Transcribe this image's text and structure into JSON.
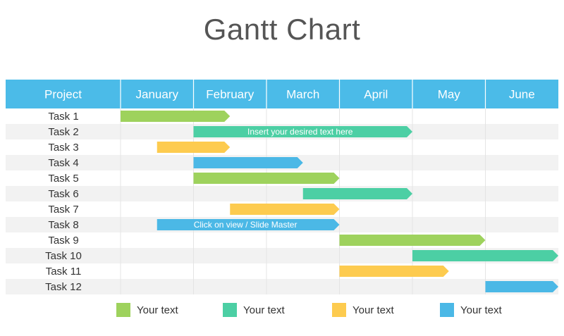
{
  "chart_data": {
    "type": "gantt",
    "title": "Gantt Chart",
    "header_label": "Project",
    "months": [
      "January",
      "February",
      "March",
      "April",
      "May",
      "June"
    ],
    "colors": {
      "green": "#9ed25d",
      "teal": "#4ccfa4",
      "yellow": "#fdcb4f",
      "blue": "#4bb8e6",
      "header": "#4bbbe8",
      "stripe": "#f2f2f2"
    },
    "tasks": [
      {
        "name": "Task 1",
        "start": 0.0,
        "end": 1.5,
        "color": "green",
        "text": ""
      },
      {
        "name": "Task 2",
        "start": 1.0,
        "end": 4.0,
        "color": "teal",
        "text": "Insert your desired text here"
      },
      {
        "name": "Task 3",
        "start": 0.5,
        "end": 1.5,
        "color": "yellow",
        "text": ""
      },
      {
        "name": "Task 4",
        "start": 1.0,
        "end": 2.5,
        "color": "blue",
        "text": ""
      },
      {
        "name": "Task 5",
        "start": 1.0,
        "end": 3.0,
        "color": "green",
        "text": ""
      },
      {
        "name": "Task 6",
        "start": 2.5,
        "end": 4.0,
        "color": "teal",
        "text": ""
      },
      {
        "name": "Task 7",
        "start": 1.5,
        "end": 3.0,
        "color": "yellow",
        "text": ""
      },
      {
        "name": "Task 8",
        "start": 0.5,
        "end": 3.0,
        "color": "blue",
        "text": "Click on view / Slide Master"
      },
      {
        "name": "Task 9",
        "start": 3.0,
        "end": 5.0,
        "color": "green",
        "text": ""
      },
      {
        "name": "Task 10",
        "start": 4.0,
        "end": 6.0,
        "color": "teal",
        "text": ""
      },
      {
        "name": "Task 11",
        "start": 3.0,
        "end": 4.5,
        "color": "yellow",
        "text": ""
      },
      {
        "name": "Task 12",
        "start": 5.0,
        "end": 6.0,
        "color": "blue",
        "text": ""
      }
    ],
    "legend": [
      {
        "label": "Your text",
        "color": "green"
      },
      {
        "label": "Your text",
        "color": "teal"
      },
      {
        "label": "Your text",
        "color": "yellow"
      },
      {
        "label": "Your text",
        "color": "blue"
      }
    ]
  }
}
